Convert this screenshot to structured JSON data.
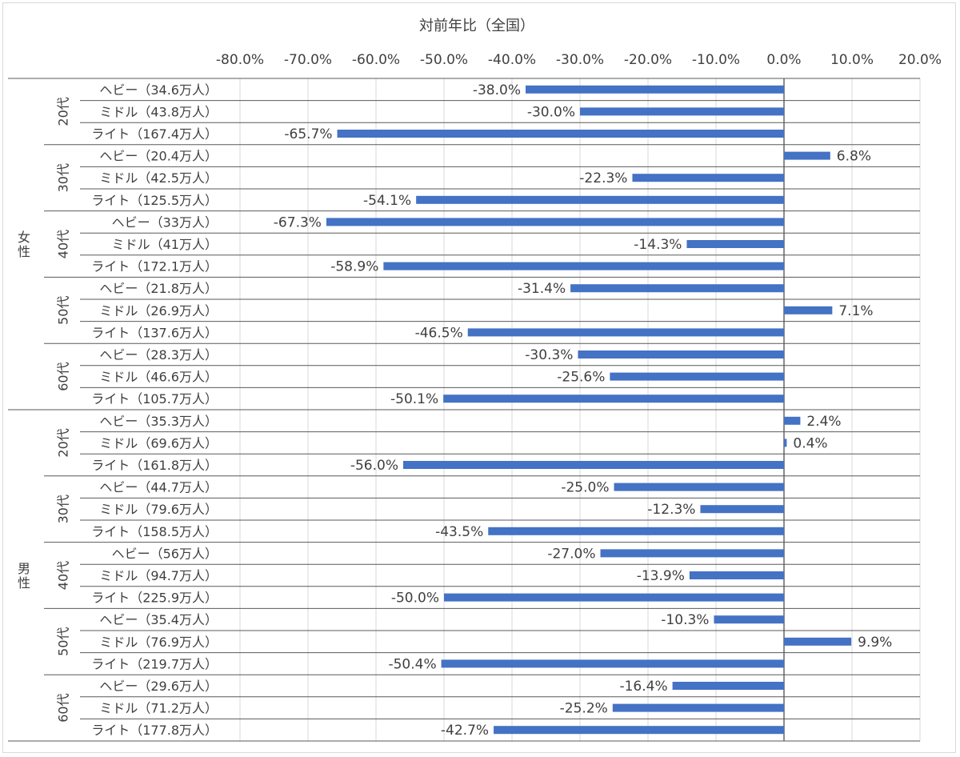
{
  "chart_data": {
    "type": "bar",
    "orientation": "horizontal",
    "title": "対前年比（全国）",
    "xlim": [
      -0.8,
      0.2
    ],
    "x_ticks": [
      -0.8,
      -0.7,
      -0.6,
      -0.5,
      -0.4,
      -0.3,
      -0.2,
      -0.1,
      0,
      0.1,
      0.2
    ],
    "x_tick_labels": [
      "-80.0%",
      "-70.0%",
      "-60.0%",
      "-50.0%",
      "-40.0%",
      "-30.0%",
      "-20.0%",
      "-10.0%",
      "0.0%",
      "10.0%",
      "20.0%"
    ],
    "x_axis_position": "top",
    "grid": true,
    "bar_color": "#4472c4",
    "groups": [
      {
        "gender": "女性",
        "ages": [
          {
            "age": "20代",
            "rows": [
              {
                "label": "ヘビー（34.6万人）",
                "value": -0.38,
                "value_label": "-38.0%"
              },
              {
                "label": "ミドル（43.8万人）",
                "value": -0.3,
                "value_label": "-30.0%"
              },
              {
                "label": "ライト（167.4万人）",
                "value": -0.657,
                "value_label": "-65.7%"
              }
            ]
          },
          {
            "age": "30代",
            "rows": [
              {
                "label": "ヘビー（20.4万人）",
                "value": 0.068,
                "value_label": "6.8%"
              },
              {
                "label": "ミドル（42.5万人）",
                "value": -0.223,
                "value_label": "-22.3%"
              },
              {
                "label": "ライト（125.5万人）",
                "value": -0.541,
                "value_label": "-54.1%"
              }
            ]
          },
          {
            "age": "40代",
            "rows": [
              {
                "label": "ヘビー（33万人）",
                "value": -0.673,
                "value_label": "-67.3%"
              },
              {
                "label": "ミドル（41万人）",
                "value": -0.143,
                "value_label": "-14.3%"
              },
              {
                "label": "ライト（172.1万人）",
                "value": -0.589,
                "value_label": "-58.9%"
              }
            ]
          },
          {
            "age": "50代",
            "rows": [
              {
                "label": "ヘビー（21.8万人）",
                "value": -0.314,
                "value_label": "-31.4%"
              },
              {
                "label": "ミドル（26.9万人）",
                "value": 0.071,
                "value_label": "7.1%"
              },
              {
                "label": "ライト（137.6万人）",
                "value": -0.465,
                "value_label": "-46.5%"
              }
            ]
          },
          {
            "age": "60代",
            "rows": [
              {
                "label": "ヘビー（28.3万人）",
                "value": -0.303,
                "value_label": "-30.3%"
              },
              {
                "label": "ミドル（46.6万人）",
                "value": -0.256,
                "value_label": "-25.6%"
              },
              {
                "label": "ライト（105.7万人）",
                "value": -0.501,
                "value_label": "-50.1%"
              }
            ]
          }
        ]
      },
      {
        "gender": "男性",
        "ages": [
          {
            "age": "20代",
            "rows": [
              {
                "label": "ヘビー（35.3万人）",
                "value": 0.024,
                "value_label": "2.4%"
              },
              {
                "label": "ミドル（69.6万人）",
                "value": 0.004,
                "value_label": "0.4%"
              },
              {
                "label": "ライト（161.8万人）",
                "value": -0.56,
                "value_label": "-56.0%"
              }
            ]
          },
          {
            "age": "30代",
            "rows": [
              {
                "label": "ヘビー（44.7万人）",
                "value": -0.25,
                "value_label": "-25.0%"
              },
              {
                "label": "ミドル（79.6万人）",
                "value": -0.123,
                "value_label": "-12.3%"
              },
              {
                "label": "ライト（158.5万人）",
                "value": -0.435,
                "value_label": "-43.5%"
              }
            ]
          },
          {
            "age": "40代",
            "rows": [
              {
                "label": "ヘビー（56万人）",
                "value": -0.27,
                "value_label": "-27.0%"
              },
              {
                "label": "ミドル（94.7万人）",
                "value": -0.139,
                "value_label": "-13.9%"
              },
              {
                "label": "ライト（225.9万人）",
                "value": -0.5,
                "value_label": "-50.0%"
              }
            ]
          },
          {
            "age": "50代",
            "rows": [
              {
                "label": "ヘビー（35.4万人）",
                "value": -0.103,
                "value_label": "-10.3%"
              },
              {
                "label": "ミドル（76.9万人）",
                "value": 0.099,
                "value_label": "9.9%"
              },
              {
                "label": "ライト（219.7万人）",
                "value": -0.504,
                "value_label": "-50.4%"
              }
            ]
          },
          {
            "age": "60代",
            "rows": [
              {
                "label": "ヘビー（29.6万人）",
                "value": -0.164,
                "value_label": "-16.4%"
              },
              {
                "label": "ミドル（71.2万人）",
                "value": -0.252,
                "value_label": "-25.2%"
              },
              {
                "label": "ライト（177.8万人）",
                "value": -0.427,
                "value_label": "-42.7%"
              }
            ]
          }
        ]
      }
    ]
  }
}
